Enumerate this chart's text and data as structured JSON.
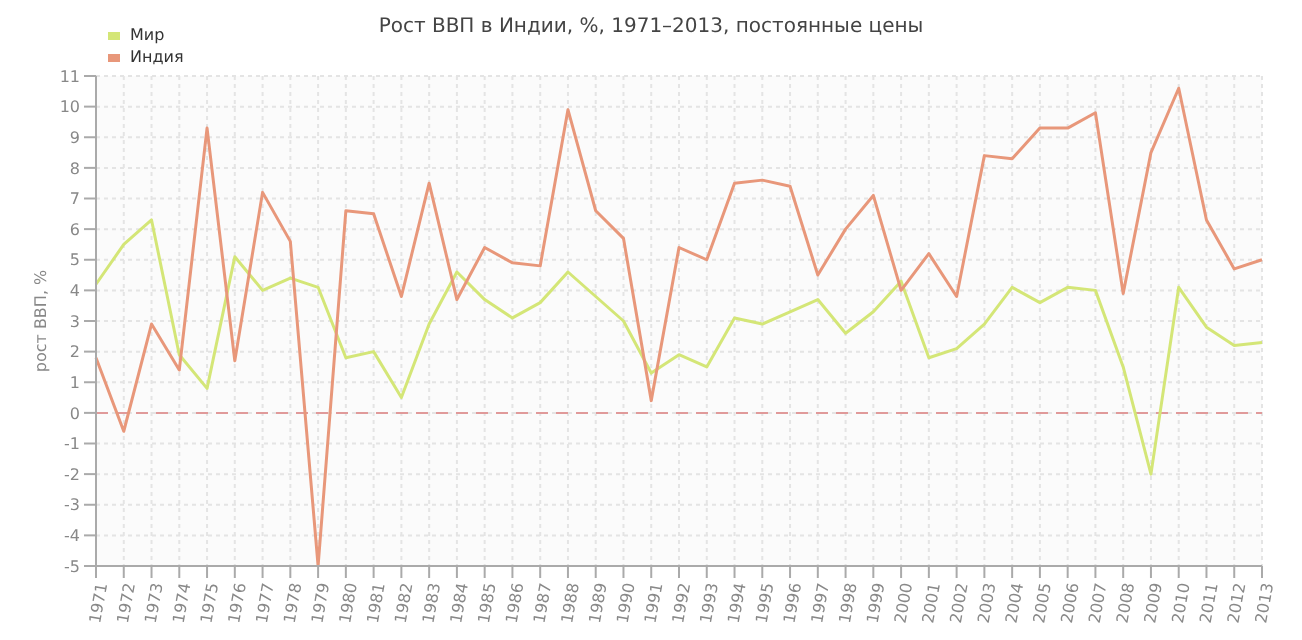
{
  "chart_data": {
    "type": "line",
    "title": "Рост ВВП в Индии, %, 1971–2013, постоянные цены",
    "ylabel": "рост ВВП, %",
    "categories": [
      "1971",
      "1972",
      "1973",
      "1974",
      "1975",
      "1976",
      "1977",
      "1978",
      "1979",
      "1980",
      "1981",
      "1982",
      "1983",
      "1984",
      "1985",
      "1986",
      "1987",
      "1988",
      "1989",
      "1990",
      "1991",
      "1992",
      "1993",
      "1994",
      "1995",
      "1996",
      "1997",
      "1998",
      "1999",
      "2000",
      "2001",
      "2002",
      "2003",
      "2004",
      "2005",
      "2006",
      "2007",
      "2008",
      "2009",
      "2010",
      "2011",
      "2012",
      "2013"
    ],
    "series": [
      {
        "name": "Мир",
        "color": "#d4e677",
        "values": [
          4.2,
          5.5,
          6.3,
          1.9,
          0.8,
          5.1,
          4.0,
          4.4,
          4.1,
          1.8,
          2.0,
          0.5,
          2.9,
          4.6,
          3.7,
          3.1,
          3.6,
          4.6,
          3.8,
          3.0,
          1.3,
          1.9,
          1.5,
          3.1,
          2.9,
          3.3,
          3.7,
          2.6,
          3.3,
          4.3,
          1.8,
          2.1,
          2.9,
          4.1,
          3.6,
          4.1,
          4.0,
          1.5,
          -2.0,
          4.1,
          2.8,
          2.2,
          2.3
        ]
      },
      {
        "name": "Индия",
        "color": "#e8977a",
        "values": [
          1.8,
          -0.6,
          2.9,
          1.4,
          9.3,
          1.7,
          7.2,
          5.6,
          -5.0,
          6.6,
          6.5,
          3.8,
          7.5,
          3.7,
          5.4,
          4.9,
          4.8,
          9.9,
          6.6,
          5.7,
          0.4,
          5.4,
          5.0,
          7.5,
          7.6,
          7.4,
          4.5,
          6.0,
          7.1,
          4.0,
          5.2,
          3.8,
          8.4,
          8.3,
          9.3,
          9.3,
          9.8,
          3.9,
          8.5,
          10.6,
          6.3,
          4.7,
          5.0
        ]
      }
    ],
    "ylim": [
      -5,
      11
    ],
    "yticks": [
      -5,
      -4,
      -3,
      -2,
      -1,
      0,
      1,
      2,
      3,
      4,
      5,
      6,
      7,
      8,
      9,
      10,
      11
    ],
    "ref_lines": [
      {
        "axis": "y",
        "value": 0,
        "color": "#e09a9a",
        "line_style": "dashed"
      }
    ],
    "grid": true,
    "legend": "top left",
    "marker": "none",
    "line_style": "solid"
  }
}
